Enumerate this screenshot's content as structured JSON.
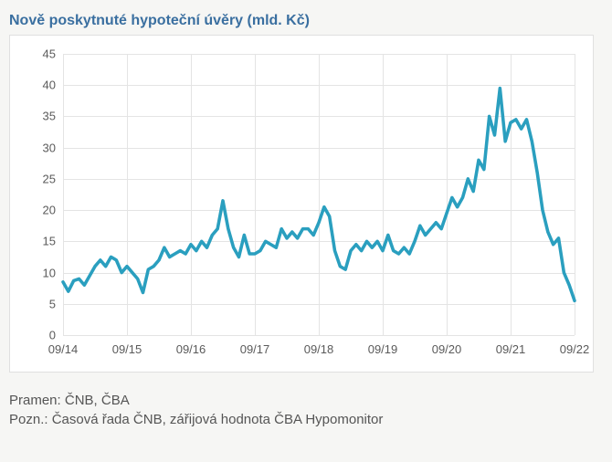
{
  "chart": {
    "type": "line",
    "title": "Nově poskytnuté hypoteční úvěry (mld. Kč)",
    "title_color": "#3a6fa0",
    "title_fontsize": 16,
    "title_fontweight": "bold",
    "background_color": "#ffffff",
    "container_background": "#f6f6f4",
    "border_color": "#e0e0e0",
    "grid_color": "#e4e4e4",
    "axis_label_color": "#5a5a5a",
    "axis_fontsize": 13,
    "line_color": "#2a9fbf",
    "line_width": 2,
    "ylim": [
      0,
      45
    ],
    "ytick_step": 5,
    "yticks": [
      0,
      5,
      10,
      15,
      20,
      25,
      30,
      35,
      40,
      45
    ],
    "xticks": [
      "09/14",
      "09/15",
      "09/16",
      "09/17",
      "09/18",
      "09/19",
      "09/20",
      "09/21",
      "09/22"
    ],
    "x_count": 97,
    "values": [
      8.5,
      7.0,
      8.7,
      9.0,
      8.0,
      9.5,
      11.0,
      12.0,
      11.0,
      12.5,
      12.0,
      10.0,
      11.0,
      10.0,
      9.0,
      6.8,
      10.5,
      11.0,
      12.0,
      14.0,
      12.5,
      13.0,
      13.5,
      13.0,
      14.5,
      13.5,
      15.0,
      14.0,
      16.0,
      17.0,
      21.5,
      17.0,
      14.0,
      12.5,
      16.0,
      13.0,
      13.0,
      13.5,
      15.0,
      14.5,
      14.0,
      17.0,
      15.5,
      16.5,
      15.5,
      17.0,
      17.0,
      16.0,
      18.0,
      20.5,
      19.0,
      13.5,
      11.0,
      10.5,
      13.5,
      14.5,
      13.5,
      15.0,
      14.0,
      15.0,
      13.5,
      16.0,
      13.5,
      13.0,
      14.0,
      13.0,
      15.0,
      17.5,
      16.0,
      17.0,
      18.0,
      17.0,
      19.5,
      22.0,
      20.5,
      22.0,
      25.0,
      23.0,
      28.0,
      26.5,
      35.0,
      32.0,
      39.5,
      31.0,
      34.0,
      34.5,
      33.0,
      34.5,
      31.0,
      26.0,
      20.0,
      16.5,
      14.5,
      15.5,
      10.0,
      8.0,
      5.5
    ]
  },
  "footer": {
    "source_label": "Pramen: ČNB, ČBA",
    "note_label": "Pozn.: Časová řada ČNB, zářijová hodnota ČBA Hypomonitor",
    "text_color": "#555555",
    "fontsize": 15
  }
}
